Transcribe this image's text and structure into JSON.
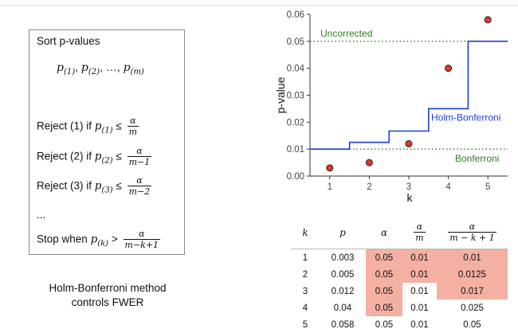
{
  "rules": {
    "sort_label": "Sort p-values",
    "p_symbol": "p",
    "sort_seq": {
      "s1": "(1)",
      "s2": "(2)",
      "s3": "(m)",
      "sep": ",",
      "ellipsis": "…"
    },
    "r1": {
      "prefix": "Reject (1) if",
      "sub": "(1)",
      "op": "≤",
      "num": "α",
      "den": "m"
    },
    "r2": {
      "prefix": "Reject (2) if",
      "sub": "(2)",
      "op": "≤",
      "num": "α",
      "den": "m−1"
    },
    "r3": {
      "prefix": "Reject (3) if",
      "sub": "(3)",
      "op": "≤",
      "num": "α",
      "den": "m−2"
    },
    "dots": "...",
    "stop": {
      "prefix": "Stop when",
      "sub": "(k)",
      "op": ">",
      "num": "α",
      "den": "m−k+1"
    }
  },
  "caption": {
    "line1": "Holm-Bonferroni method",
    "line2": "controls FWER"
  },
  "chart_data": {
    "type": "scatter",
    "xlabel": "k",
    "ylabel": "p-value",
    "xlim": [
      0.5,
      5.5
    ],
    "ylim": [
      0.0,
      0.06
    ],
    "x_ticks": [
      "1",
      "2",
      "3",
      "4",
      "5"
    ],
    "y_ticks": [
      "0.00",
      "0.01",
      "0.02",
      "0.03",
      "0.04",
      "0.05",
      "0.06"
    ],
    "points": {
      "x": [
        1,
        2,
        3,
        4,
        5
      ],
      "y": [
        0.003,
        0.005,
        0.012,
        0.04,
        0.058
      ]
    },
    "holm_steps": [
      0.01,
      0.0125,
      0.0167,
      0.025,
      0.05
    ],
    "uncorrected": 0.05,
    "bonferroni": 0.01,
    "labels": {
      "uncorrected": "Uncorrected",
      "holm": "Holm-Bonferroni",
      "bonferroni": "Bonferroni"
    },
    "colors": {
      "points": "#e03a2a",
      "holm": "#1f3fd6",
      "reference": "#2e7d1f"
    }
  },
  "table": {
    "headers": {
      "k": "k",
      "p": "p",
      "alpha": "α",
      "frac1_num": "α",
      "frac1_den": "m",
      "frac2_num": "α",
      "frac2_den": "m − k + 1"
    },
    "rows": [
      {
        "k": "1",
        "p": "0.003",
        "alpha": "0.05",
        "a_m": "0.01",
        "holm": "0.01"
      },
      {
        "k": "2",
        "p": "0.005",
        "alpha": "0.05",
        "a_m": "0.01",
        "holm": "0.0125"
      },
      {
        "k": "3",
        "p": "0.012",
        "alpha": "0.05",
        "a_m": "0.01",
        "holm": "0.017"
      },
      {
        "k": "4",
        "p": "0.04",
        "alpha": "0.05",
        "a_m": "0.01",
        "holm": "0.025"
      },
      {
        "k": "5",
        "p": "0.058",
        "alpha": "0.05",
        "a_m": "0.01",
        "holm": "0.05"
      }
    ],
    "highlight_color": "#f3b0a3"
  }
}
